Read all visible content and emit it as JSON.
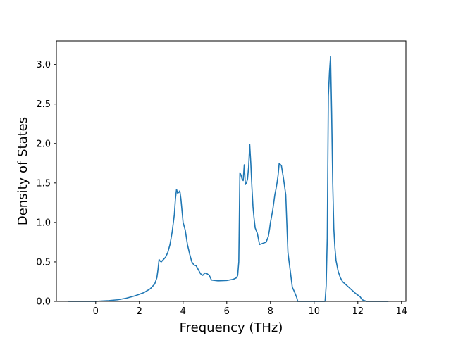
{
  "chart_data": {
    "type": "line",
    "title": "",
    "xlabel": "Frequency (THz)",
    "ylabel": "Density of States",
    "xlim": [
      -1.8,
      14.2
    ],
    "ylim": [
      0.0,
      3.3
    ],
    "xticks": [
      0,
      2,
      4,
      6,
      8,
      10,
      12,
      14
    ],
    "xtick_labels": [
      "0",
      "2",
      "4",
      "6",
      "8",
      "10",
      "12",
      "14"
    ],
    "yticks": [
      0.0,
      0.5,
      1.0,
      1.5,
      2.0,
      2.5,
      3.0
    ],
    "ytick_labels": [
      "0.0",
      "0.5",
      "1.0",
      "1.5",
      "2.0",
      "2.5",
      "3.0"
    ],
    "grid": false,
    "legend": "none",
    "line_color": "#1f77b4",
    "series": [
      {
        "x": [
          -1.25,
          -0.5,
          0.0,
          0.3,
          0.6,
          1.0,
          1.4,
          1.8,
          2.2,
          2.5,
          2.7,
          2.8,
          2.85,
          2.9,
          2.95,
          3.0,
          3.1,
          3.2,
          3.3,
          3.4,
          3.5,
          3.6,
          3.65,
          3.7,
          3.75,
          3.8,
          3.85,
          3.9,
          3.95,
          4.0,
          4.1,
          4.2,
          4.3,
          4.4,
          4.5,
          4.6,
          4.7,
          4.8,
          4.9,
          5.0,
          5.1,
          5.2,
          5.3,
          5.6,
          6.0,
          6.3,
          6.45,
          6.5,
          6.55,
          6.6,
          6.65,
          6.7,
          6.75,
          6.8,
          6.85,
          6.9,
          6.95,
          7.0,
          7.05,
          7.1,
          7.15,
          7.2,
          7.25,
          7.3,
          7.4,
          7.5,
          7.6,
          7.7,
          7.8,
          7.9,
          7.95,
          8.0,
          8.1,
          8.2,
          8.25,
          8.3,
          8.35,
          8.4,
          8.5,
          8.6,
          8.7,
          8.8,
          8.9,
          9.0,
          9.1,
          9.2,
          9.25,
          9.3,
          9.5,
          10.0,
          10.4,
          10.5,
          10.55,
          10.6,
          10.65,
          10.7,
          10.75,
          10.8,
          10.85,
          10.9,
          10.95,
          11.0,
          11.1,
          11.2,
          11.3,
          11.5,
          11.7,
          11.9,
          12.1,
          12.2,
          12.4,
          13.0,
          13.4
        ],
        "y": [
          0.0,
          0.0,
          0.0,
          0.005,
          0.01,
          0.02,
          0.04,
          0.07,
          0.11,
          0.16,
          0.22,
          0.3,
          0.4,
          0.53,
          0.51,
          0.5,
          0.53,
          0.56,
          0.62,
          0.72,
          0.88,
          1.1,
          1.3,
          1.42,
          1.37,
          1.38,
          1.4,
          1.3,
          1.15,
          1.0,
          0.9,
          0.72,
          0.6,
          0.5,
          0.46,
          0.45,
          0.4,
          0.35,
          0.33,
          0.36,
          0.35,
          0.33,
          0.27,
          0.26,
          0.265,
          0.28,
          0.3,
          0.33,
          0.5,
          1.63,
          1.6,
          1.55,
          1.53,
          1.73,
          1.48,
          1.5,
          1.55,
          1.7,
          1.99,
          1.75,
          1.45,
          1.2,
          1.05,
          0.93,
          0.86,
          0.72,
          0.73,
          0.74,
          0.75,
          0.82,
          0.9,
          1.0,
          1.15,
          1.35,
          1.42,
          1.5,
          1.6,
          1.75,
          1.72,
          1.55,
          1.35,
          0.62,
          0.4,
          0.18,
          0.12,
          0.05,
          0.0,
          0.0,
          0.0,
          0.0,
          0.0,
          0.0,
          0.2,
          0.8,
          2.6,
          2.9,
          3.1,
          2.4,
          1.5,
          0.92,
          0.68,
          0.52,
          0.38,
          0.3,
          0.25,
          0.2,
          0.15,
          0.1,
          0.06,
          0.02,
          0.0,
          0.0,
          0.0
        ]
      }
    ]
  }
}
